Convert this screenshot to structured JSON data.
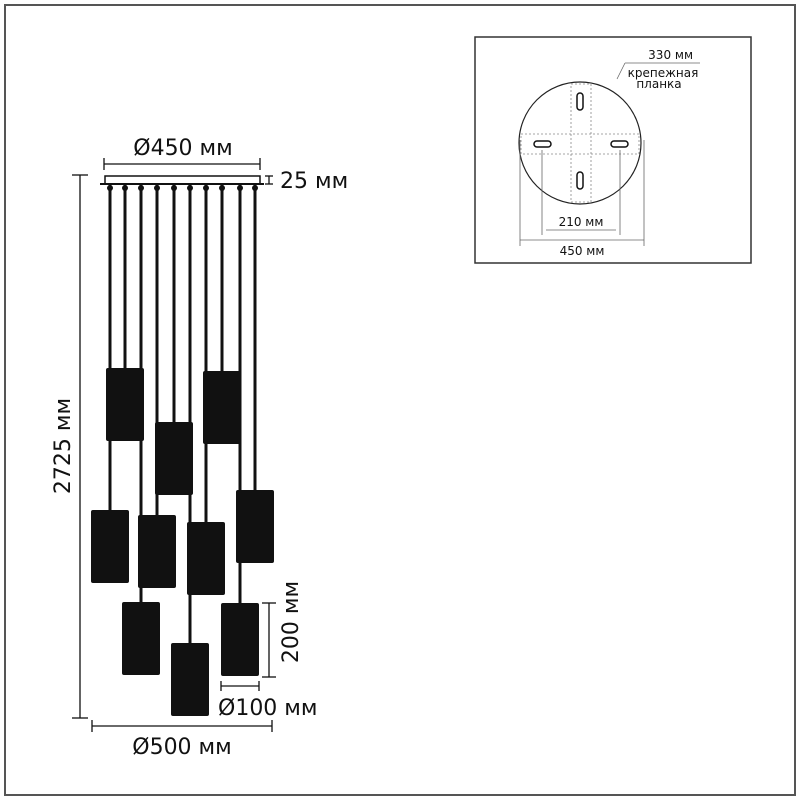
{
  "main_view": {
    "canopy_diameter": "Ø450 мм",
    "canopy_height": "25 мм",
    "total_height": "2725 мм",
    "overall_diameter": "Ø500 мм",
    "shade_height": "200 мм",
    "shade_diameter": "Ø100 мм",
    "shade_count": 10,
    "shade_color": "#111111"
  },
  "inset_view": {
    "bracket_length": "330 мм",
    "bracket_label_line1": "крепежная",
    "bracket_label_line2": "планка",
    "hole_spacing": "210 мм",
    "canopy_diameter": "450 мм"
  }
}
